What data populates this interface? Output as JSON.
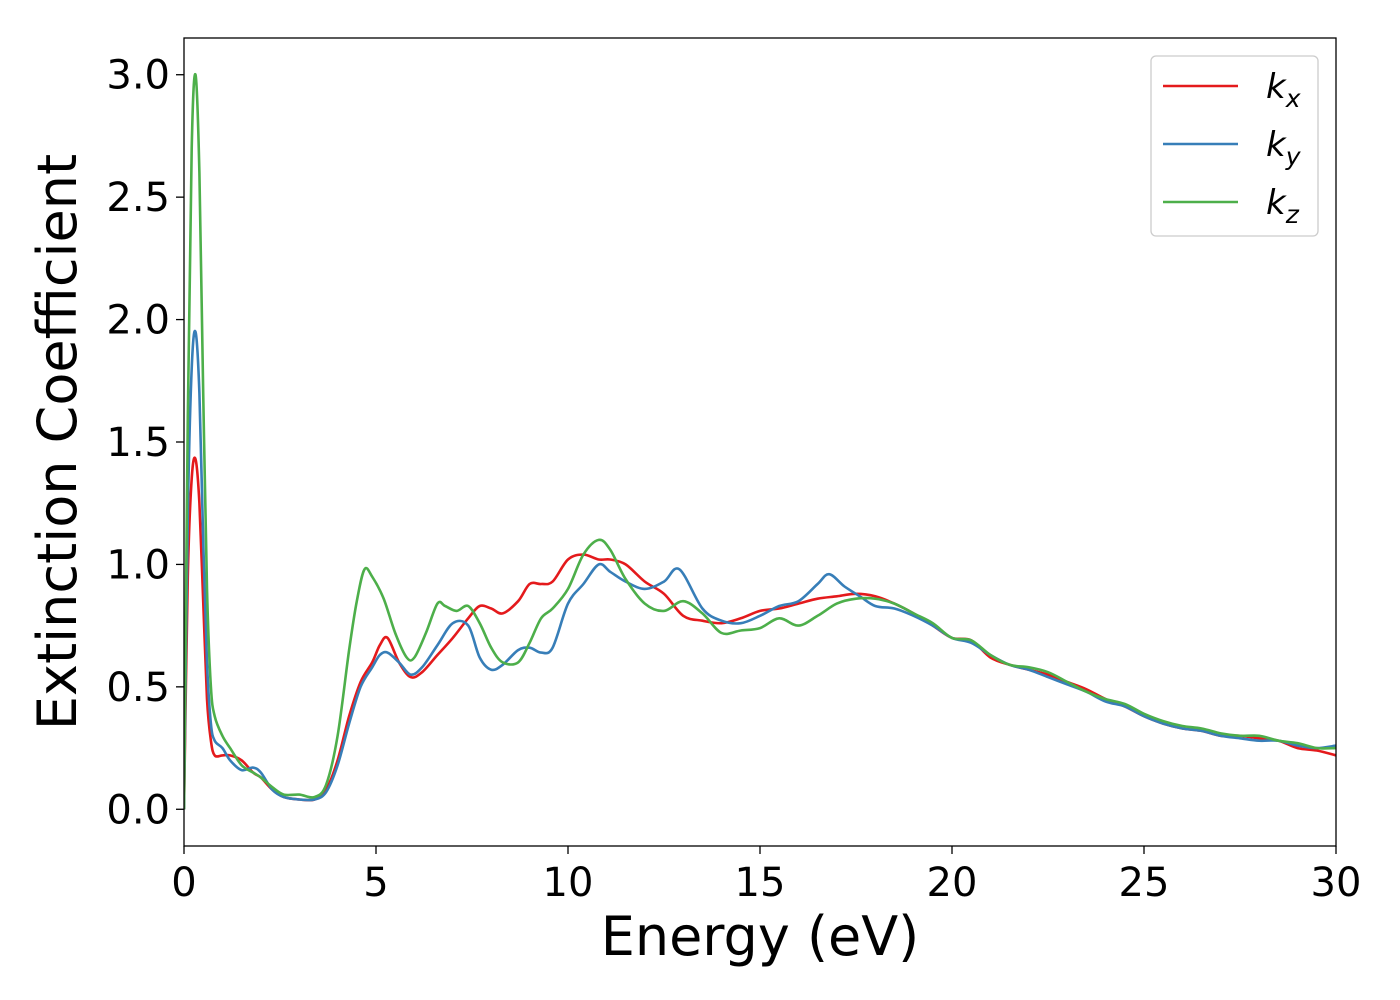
{
  "chart_data": {
    "type": "line",
    "xlabel": "Energy (eV)",
    "ylabel": "Extinction Coefficient",
    "xlim": [
      0,
      30
    ],
    "ylim": [
      -0.15,
      3.15
    ],
    "x_ticks": [
      0,
      5,
      10,
      15,
      20,
      25,
      30
    ],
    "x_tick_labels": [
      "0",
      "5",
      "10",
      "15",
      "20",
      "25",
      "30"
    ],
    "y_ticks": [
      0.0,
      0.5,
      1.0,
      1.5,
      2.0,
      2.5,
      3.0
    ],
    "y_tick_labels": [
      "0.0",
      "0.5",
      "1.0",
      "1.5",
      "2.0",
      "2.5",
      "3.0"
    ],
    "grid": false,
    "legend_position": "top-right",
    "series": [
      {
        "name": "k",
        "subscript": "x",
        "color": "#e41a1c",
        "x": [
          0,
          0.1,
          0.2,
          0.3,
          0.4,
          0.5,
          0.6,
          0.7,
          0.8,
          1.0,
          1.2,
          1.5,
          1.8,
          2.0,
          2.3,
          2.6,
          3.0,
          3.4,
          3.7,
          4.0,
          4.3,
          4.6,
          4.9,
          5.1,
          5.3,
          5.6,
          5.9,
          6.2,
          6.6,
          7.0,
          7.4,
          7.7,
          8.0,
          8.3,
          8.7,
          9.0,
          9.3,
          9.6,
          10.0,
          10.4,
          10.8,
          11.1,
          11.5,
          12.0,
          12.5,
          13.0,
          13.5,
          14.0,
          14.5,
          15.0,
          15.5,
          16.0,
          16.5,
          17.0,
          17.5,
          18.0,
          18.5,
          19.0,
          19.5,
          20.0,
          20.5,
          21.0,
          21.5,
          22.0,
          22.5,
          23.0,
          23.5,
          24.0,
          24.5,
          25.0,
          25.5,
          26.0,
          26.5,
          27.0,
          27.5,
          28.0,
          28.5,
          29.0,
          29.5,
          30.0
        ],
        "y": [
          0.0,
          0.95,
          1.35,
          1.43,
          1.25,
          0.85,
          0.45,
          0.28,
          0.22,
          0.22,
          0.22,
          0.2,
          0.15,
          0.13,
          0.08,
          0.05,
          0.04,
          0.04,
          0.08,
          0.2,
          0.38,
          0.52,
          0.6,
          0.67,
          0.7,
          0.6,
          0.54,
          0.56,
          0.63,
          0.7,
          0.78,
          0.83,
          0.82,
          0.8,
          0.85,
          0.92,
          0.92,
          0.93,
          1.02,
          1.04,
          1.02,
          1.02,
          1.0,
          0.93,
          0.88,
          0.79,
          0.77,
          0.76,
          0.78,
          0.81,
          0.82,
          0.84,
          0.86,
          0.87,
          0.88,
          0.87,
          0.84,
          0.8,
          0.75,
          0.7,
          0.69,
          0.62,
          0.59,
          0.57,
          0.55,
          0.52,
          0.49,
          0.45,
          0.42,
          0.38,
          0.35,
          0.33,
          0.32,
          0.3,
          0.3,
          0.29,
          0.28,
          0.25,
          0.24,
          0.22
        ]
      },
      {
        "name": "k",
        "subscript": "y",
        "color": "#377eb8",
        "x": [
          0,
          0.1,
          0.2,
          0.3,
          0.4,
          0.5,
          0.6,
          0.7,
          0.8,
          1.0,
          1.2,
          1.5,
          1.8,
          2.0,
          2.3,
          2.6,
          3.0,
          3.4,
          3.7,
          4.0,
          4.3,
          4.6,
          4.9,
          5.1,
          5.3,
          5.6,
          5.9,
          6.2,
          6.6,
          7.0,
          7.4,
          7.7,
          8.0,
          8.3,
          8.7,
          9.0,
          9.3,
          9.6,
          10.0,
          10.4,
          10.8,
          11.1,
          11.5,
          12.0,
          12.5,
          12.9,
          13.5,
          14.0,
          14.5,
          15.0,
          15.5,
          16.0,
          16.5,
          16.8,
          17.2,
          17.6,
          18.0,
          18.5,
          19.0,
          19.5,
          20.0,
          20.5,
          21.0,
          21.5,
          22.0,
          22.5,
          23.0,
          23.5,
          24.0,
          24.5,
          25.0,
          25.5,
          26.0,
          26.5,
          27.0,
          27.5,
          28.0,
          28.5,
          29.0,
          29.5,
          30.0
        ],
        "y": [
          0.0,
          1.2,
          1.8,
          1.95,
          1.7,
          1.1,
          0.6,
          0.35,
          0.28,
          0.25,
          0.2,
          0.16,
          0.17,
          0.15,
          0.08,
          0.05,
          0.04,
          0.04,
          0.07,
          0.18,
          0.35,
          0.5,
          0.58,
          0.63,
          0.64,
          0.6,
          0.55,
          0.58,
          0.67,
          0.76,
          0.75,
          0.62,
          0.57,
          0.59,
          0.65,
          0.66,
          0.64,
          0.66,
          0.84,
          0.92,
          1.0,
          0.97,
          0.93,
          0.9,
          0.93,
          0.98,
          0.82,
          0.77,
          0.76,
          0.79,
          0.83,
          0.85,
          0.92,
          0.96,
          0.91,
          0.87,
          0.83,
          0.82,
          0.79,
          0.75,
          0.7,
          0.68,
          0.63,
          0.59,
          0.57,
          0.54,
          0.51,
          0.48,
          0.44,
          0.42,
          0.38,
          0.35,
          0.33,
          0.32,
          0.3,
          0.29,
          0.28,
          0.28,
          0.26,
          0.25,
          0.26
        ]
      },
      {
        "name": "k",
        "subscript": "z",
        "color": "#4daf4a",
        "x": [
          0,
          0.1,
          0.2,
          0.3,
          0.4,
          0.5,
          0.6,
          0.7,
          0.8,
          1.0,
          1.2,
          1.5,
          1.8,
          2.0,
          2.3,
          2.6,
          3.0,
          3.4,
          3.7,
          4.0,
          4.3,
          4.5,
          4.7,
          4.9,
          5.2,
          5.5,
          5.8,
          6.0,
          6.3,
          6.6,
          6.8,
          7.1,
          7.4,
          7.7,
          8.0,
          8.3,
          8.7,
          9.0,
          9.3,
          9.6,
          10.0,
          10.4,
          10.8,
          11.1,
          11.5,
          12.0,
          12.5,
          13.0,
          13.5,
          14.0,
          14.5,
          15.0,
          15.5,
          16.0,
          16.5,
          17.0,
          17.5,
          18.0,
          18.5,
          19.0,
          19.5,
          20.0,
          20.5,
          21.0,
          21.5,
          22.0,
          22.5,
          23.0,
          23.5,
          24.0,
          24.5,
          25.0,
          25.5,
          26.0,
          26.5,
          27.0,
          27.5,
          28.0,
          28.5,
          29.0,
          29.5,
          30.0
        ],
        "y": [
          0.0,
          1.6,
          2.7,
          3.0,
          2.6,
          1.7,
          0.9,
          0.5,
          0.38,
          0.3,
          0.25,
          0.18,
          0.15,
          0.13,
          0.09,
          0.06,
          0.06,
          0.05,
          0.1,
          0.3,
          0.65,
          0.85,
          0.98,
          0.95,
          0.86,
          0.72,
          0.62,
          0.62,
          0.72,
          0.84,
          0.83,
          0.81,
          0.83,
          0.76,
          0.66,
          0.6,
          0.6,
          0.68,
          0.78,
          0.82,
          0.9,
          1.04,
          1.1,
          1.06,
          0.94,
          0.84,
          0.81,
          0.85,
          0.8,
          0.72,
          0.73,
          0.74,
          0.78,
          0.75,
          0.79,
          0.84,
          0.86,
          0.86,
          0.84,
          0.8,
          0.76,
          0.7,
          0.69,
          0.63,
          0.59,
          0.58,
          0.56,
          0.52,
          0.48,
          0.45,
          0.43,
          0.39,
          0.36,
          0.34,
          0.33,
          0.31,
          0.3,
          0.3,
          0.28,
          0.27,
          0.25,
          0.25
        ]
      }
    ]
  }
}
